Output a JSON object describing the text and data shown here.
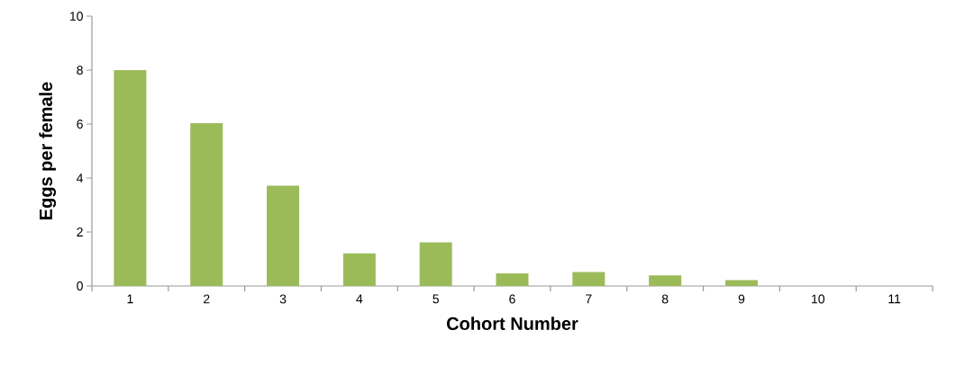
{
  "chart_data": {
    "type": "bar",
    "xlabel": "Cohort Number",
    "ylabel": "Eggs per female",
    "categories": [
      "1",
      "2",
      "3",
      "4",
      "5",
      "6",
      "7",
      "8",
      "9",
      "10",
      "11"
    ],
    "values": [
      8.0,
      6.03,
      3.72,
      1.21,
      1.62,
      0.47,
      0.52,
      0.39,
      0.22,
      0,
      0
    ],
    "color": "#9bbb59",
    "ylim": [
      0,
      10
    ],
    "yticks": [
      0,
      2,
      4,
      6,
      8,
      10
    ]
  }
}
